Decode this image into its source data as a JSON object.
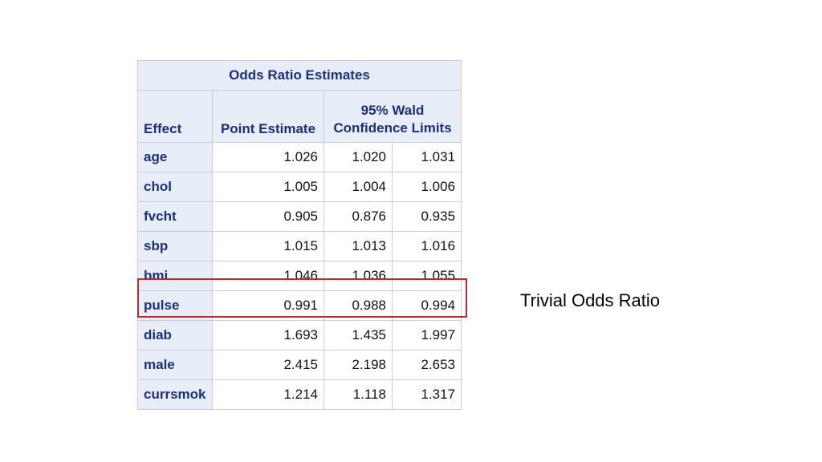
{
  "table": {
    "title": "Odds Ratio Estimates",
    "headers": {
      "effect": "Effect",
      "point_estimate": "Point Estimate",
      "wald_line1": "95% Wald",
      "wald_line2": "Confidence Limits"
    },
    "rows": [
      {
        "effect": "age",
        "point": "1.026",
        "lower": "1.020",
        "upper": "1.031"
      },
      {
        "effect": "chol",
        "point": "1.005",
        "lower": "1.004",
        "upper": "1.006"
      },
      {
        "effect": "fvcht",
        "point": "0.905",
        "lower": "0.876",
        "upper": "0.935"
      },
      {
        "effect": "sbp",
        "point": "1.015",
        "lower": "1.013",
        "upper": "1.016"
      },
      {
        "effect": "bmi",
        "point": "1.046",
        "lower": "1.036",
        "upper": "1.055"
      },
      {
        "effect": "pulse",
        "point": "0.991",
        "lower": "0.988",
        "upper": "0.994"
      },
      {
        "effect": "diab",
        "point": "1.693",
        "lower": "1.435",
        "upper": "1.997"
      },
      {
        "effect": "male",
        "point": "2.415",
        "lower": "2.198",
        "upper": "2.653"
      },
      {
        "effect": "currsmok",
        "point": "1.214",
        "lower": "1.118",
        "upper": "1.317"
      }
    ]
  },
  "annotation": {
    "text": "Trivial Odds Ratio",
    "highlight_color": "#c0282e"
  },
  "colors": {
    "header_bg": "#e8eef8",
    "header_text": "#1d2f7c",
    "border": "#c7cdd6"
  }
}
